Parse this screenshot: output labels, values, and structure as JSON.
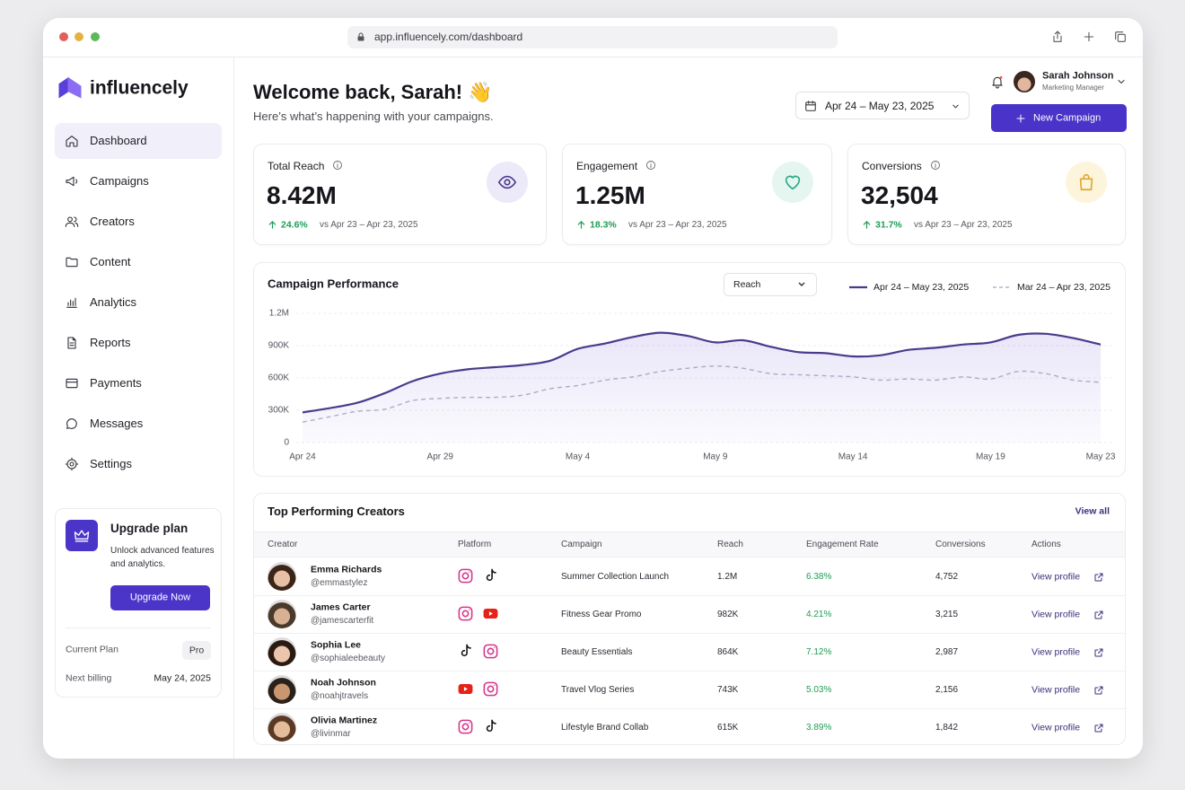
{
  "browser": {
    "url": "app.influencely.com/dashboard"
  },
  "sidebar": {
    "brand": "influencely",
    "nav": [
      "Dashboard",
      "Campaigns",
      "Creators",
      "Content",
      "Analytics",
      "Reports",
      "Payments",
      "Messages",
      "Settings"
    ],
    "upgrade": {
      "title": "Upgrade plan",
      "text": "Unlock advanced features and analytics.",
      "button": "Upgrade Now",
      "plan_label": "Current Plan",
      "plan": "Pro",
      "billing_label": "Next billing",
      "billing": "May 24, 2025"
    }
  },
  "header": {
    "title": "Welcome back, Sarah! 👋",
    "subtitle": "Here’s what’s happening with your campaigns.",
    "date_range": "Apr 24 – May 23, 2025",
    "user": {
      "name": "Sarah Johnson",
      "role": "Marketing Manager"
    },
    "button": "New Campaign"
  },
  "kpis": [
    {
      "label": "Total Reach",
      "value": "8.42M",
      "change": "24.6%",
      "period": "vs Apr 23 – Apr 23, 2025"
    },
    {
      "label": "Engagement",
      "value": "1.25M",
      "change": "18.3%",
      "period": "vs Apr 23 – Apr 23, 2025"
    },
    {
      "label": "Conversions",
      "value": "32,504",
      "change": "31.7%",
      "period": "vs Apr 23 – Apr 23, 2025"
    }
  ],
  "chart_data": {
    "type": "line",
    "title": "Campaign Performance",
    "metric": "Reach",
    "categories": [
      "Apr 24",
      null,
      null,
      null,
      null,
      "Apr 29",
      null,
      null,
      null,
      null,
      "May 4",
      null,
      null,
      null,
      null,
      "May 9",
      null,
      null,
      null,
      null,
      "May 14",
      null,
      null,
      null,
      null,
      "May 19",
      null,
      null,
      null,
      "May 23"
    ],
    "series": [
      {
        "name": "Apr 24 – May 23, 2025",
        "color": "#4b3a8c",
        "line_style": "solid",
        "area": true,
        "values": [
          280000,
          320000,
          370000,
          460000,
          570000,
          640000,
          680000,
          700000,
          720000,
          760000,
          870000,
          920000,
          980000,
          1020000,
          990000,
          930000,
          950000,
          890000,
          840000,
          830000,
          800000,
          810000,
          860000,
          880000,
          910000,
          930000,
          1000000,
          1010000,
          970000,
          910000
        ]
      },
      {
        "name": "Mar 24 – Apr 23, 2025",
        "color": "#b6b1c6",
        "line_style": "dashed",
        "area": false,
        "values": [
          190000,
          240000,
          290000,
          310000,
          390000,
          410000,
          420000,
          420000,
          440000,
          500000,
          530000,
          580000,
          610000,
          660000,
          690000,
          710000,
          690000,
          640000,
          630000,
          620000,
          610000,
          580000,
          590000,
          580000,
          610000,
          590000,
          660000,
          640000,
          580000,
          560000
        ]
      }
    ],
    "ylim": [
      0,
      1200000
    ],
    "yticks": [
      0,
      {
        "value": 300000,
        "label": "300K"
      },
      {
        "value": 600000,
        "label": "600K"
      },
      {
        "value": 900000,
        "label": "900K"
      },
      {
        "value": 1200000,
        "label": "1.2M"
      }
    ],
    "grid": true
  },
  "table": {
    "title": "Top Performing Creators",
    "view_all": "View all",
    "columns": [
      "Creator",
      "Platform",
      "Campaign",
      "Reach",
      "Engagement Rate",
      "Conversions",
      "Actions"
    ],
    "rows": [
      {
        "name": "Emma Richards",
        "handle": "@emmastylez",
        "campaign": "Summer Collection Launch",
        "reach": "1.2M",
        "engagement": "6.38%",
        "conversions": "4,752",
        "action": "View profile"
      },
      {
        "name": "James Carter",
        "handle": "@jamescarterfit",
        "campaign": "Fitness Gear Promo",
        "reach": "982K",
        "engagement": "4.21%",
        "conversions": "3,215",
        "action": "View profile"
      },
      {
        "name": "Sophia Lee",
        "handle": "@sophialeebeauty",
        "campaign": "Beauty Essentials",
        "reach": "864K",
        "engagement": "7.12%",
        "conversions": "2,987",
        "action": "View profile"
      },
      {
        "name": "Noah Johnson",
        "handle": "@noahjtravels",
        "campaign": "Travel Vlog Series",
        "reach": "743K",
        "engagement": "5.03%",
        "conversions": "2,156",
        "action": "View profile"
      },
      {
        "name": "Olivia Martinez",
        "handle": "@livinmar",
        "campaign": "Lifestyle Brand Collab",
        "reach": "615K",
        "engagement": "3.89%",
        "conversions": "1,842",
        "action": "View profile"
      }
    ]
  }
}
